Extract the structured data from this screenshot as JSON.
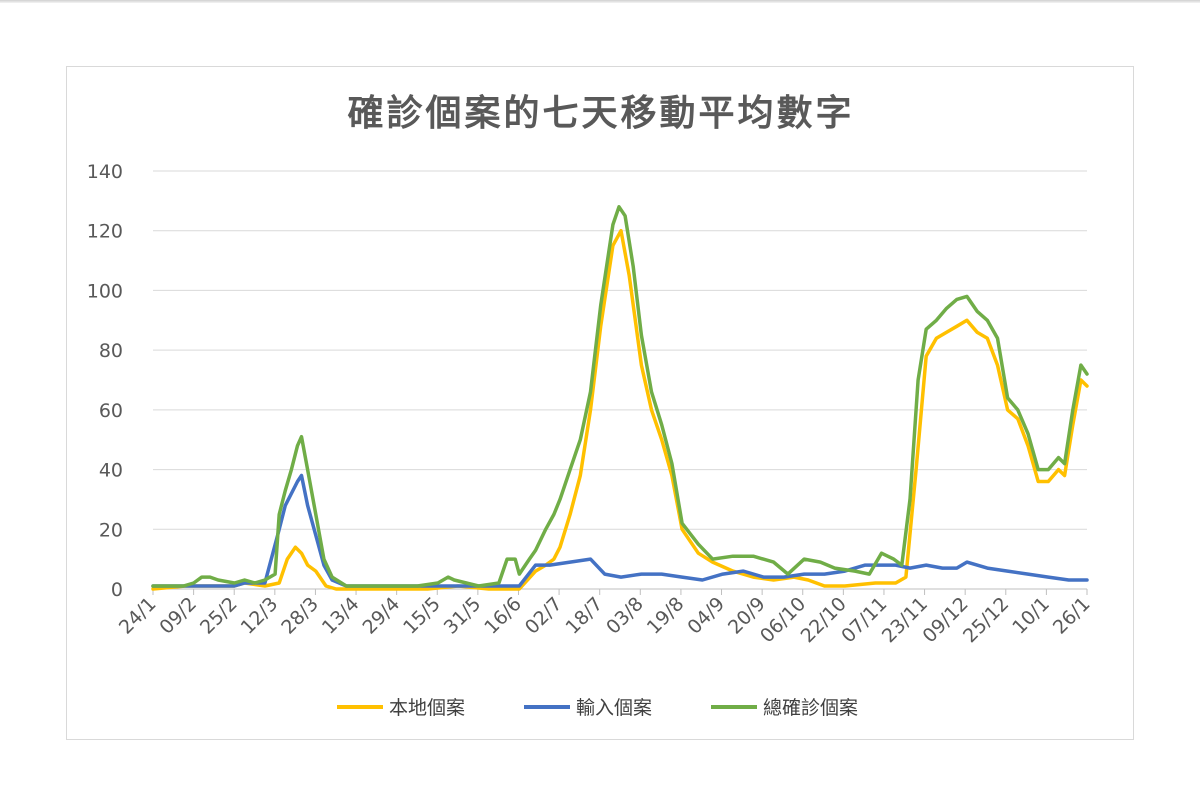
{
  "chart_data": {
    "type": "line",
    "title": "確診個案的七天移動平均數字",
    "xlabel": "",
    "ylabel": "",
    "ylim": [
      0,
      140
    ],
    "yticks": [
      0,
      20,
      40,
      60,
      80,
      100,
      120,
      140
    ],
    "grid": true,
    "legend_position": "bottom",
    "x_start_date": "24/1",
    "x_end_date": "26/1",
    "x_tick_labels": [
      "24/1",
      "09/2",
      "25/2",
      "12/3",
      "28/3",
      "13/4",
      "29/4",
      "15/5",
      "31/5",
      "16/6",
      "02/7",
      "18/7",
      "03/8",
      "19/8",
      "04/9",
      "20/9",
      "06/10",
      "22/10",
      "07/11",
      "23/11",
      "09/12",
      "25/12",
      "10/1",
      "26/1"
    ],
    "series": [
      {
        "name": "本地個案",
        "color": "#FFC000",
        "points": [
          [
            0,
            0
          ],
          [
            16,
            1
          ],
          [
            30,
            1
          ],
          [
            40,
            1
          ],
          [
            45,
            2
          ],
          [
            55,
            1
          ],
          [
            62,
            2
          ],
          [
            66,
            10
          ],
          [
            70,
            14
          ],
          [
            73,
            12
          ],
          [
            76,
            8
          ],
          [
            80,
            6
          ],
          [
            85,
            1
          ],
          [
            90,
            0
          ],
          [
            110,
            0
          ],
          [
            135,
            0
          ],
          [
            150,
            1
          ],
          [
            165,
            0
          ],
          [
            180,
            0
          ],
          [
            188,
            6
          ],
          [
            193,
            8
          ],
          [
            197,
            10
          ],
          [
            200,
            14
          ],
          [
            205,
            25
          ],
          [
            210,
            38
          ],
          [
            215,
            60
          ],
          [
            220,
            88
          ],
          [
            226,
            115
          ],
          [
            230,
            120
          ],
          [
            234,
            105
          ],
          [
            240,
            75
          ],
          [
            245,
            60
          ],
          [
            250,
            50
          ],
          [
            255,
            38
          ],
          [
            260,
            20
          ],
          [
            268,
            12
          ],
          [
            275,
            9
          ],
          [
            285,
            6
          ],
          [
            295,
            4
          ],
          [
            305,
            3
          ],
          [
            315,
            4
          ],
          [
            322,
            3
          ],
          [
            330,
            1
          ],
          [
            340,
            1
          ],
          [
            355,
            2
          ],
          [
            365,
            2
          ],
          [
            370,
            4
          ],
          [
            375,
            40
          ],
          [
            380,
            78
          ],
          [
            385,
            84
          ],
          [
            390,
            86
          ],
          [
            395,
            88
          ],
          [
            400,
            90
          ],
          [
            405,
            86
          ],
          [
            410,
            84
          ],
          [
            415,
            75
          ],
          [
            420,
            60
          ],
          [
            425,
            57
          ],
          [
            430,
            48
          ],
          [
            435,
            36
          ],
          [
            440,
            36
          ],
          [
            445,
            40
          ],
          [
            448,
            38
          ],
          [
            452,
            55
          ],
          [
            456,
            70
          ],
          [
            459,
            68
          ]
        ]
      },
      {
        "name": "輸入個案",
        "color": "#4472C4",
        "points": [
          [
            0,
            1
          ],
          [
            15,
            1
          ],
          [
            30,
            1
          ],
          [
            40,
            1
          ],
          [
            45,
            2
          ],
          [
            55,
            2
          ],
          [
            62,
            20
          ],
          [
            65,
            28
          ],
          [
            68,
            32
          ],
          [
            71,
            36
          ],
          [
            73,
            38
          ],
          [
            76,
            28
          ],
          [
            80,
            18
          ],
          [
            84,
            8
          ],
          [
            88,
            3
          ],
          [
            95,
            1
          ],
          [
            110,
            1
          ],
          [
            130,
            1
          ],
          [
            140,
            1
          ],
          [
            150,
            1
          ],
          [
            160,
            1
          ],
          [
            170,
            1
          ],
          [
            180,
            1
          ],
          [
            188,
            8
          ],
          [
            195,
            8
          ],
          [
            205,
            9
          ],
          [
            215,
            10
          ],
          [
            222,
            5
          ],
          [
            230,
            4
          ],
          [
            240,
            5
          ],
          [
            250,
            5
          ],
          [
            260,
            4
          ],
          [
            270,
            3
          ],
          [
            280,
            5
          ],
          [
            290,
            6
          ],
          [
            300,
            4
          ],
          [
            310,
            4
          ],
          [
            320,
            5
          ],
          [
            330,
            5
          ],
          [
            340,
            6
          ],
          [
            350,
            8
          ],
          [
            358,
            8
          ],
          [
            365,
            8
          ],
          [
            372,
            7
          ],
          [
            380,
            8
          ],
          [
            388,
            7
          ],
          [
            395,
            7
          ],
          [
            400,
            9
          ],
          [
            405,
            8
          ],
          [
            410,
            7
          ],
          [
            420,
            6
          ],
          [
            430,
            5
          ],
          [
            440,
            4
          ],
          [
            450,
            3
          ],
          [
            459,
            3
          ]
        ]
      },
      {
        "name": "總確診個案",
        "color": "#70AD47",
        "points": [
          [
            0,
            1
          ],
          [
            15,
            1
          ],
          [
            20,
            2
          ],
          [
            24,
            4
          ],
          [
            28,
            4
          ],
          [
            32,
            3
          ],
          [
            40,
            2
          ],
          [
            45,
            3
          ],
          [
            50,
            2
          ],
          [
            55,
            3
          ],
          [
            60,
            5
          ],
          [
            62,
            25
          ],
          [
            65,
            33
          ],
          [
            68,
            40
          ],
          [
            71,
            48
          ],
          [
            73,
            51
          ],
          [
            76,
            40
          ],
          [
            80,
            25
          ],
          [
            84,
            10
          ],
          [
            88,
            4
          ],
          [
            95,
            1
          ],
          [
            110,
            1
          ],
          [
            130,
            1
          ],
          [
            140,
            2
          ],
          [
            145,
            4
          ],
          [
            148,
            3
          ],
          [
            160,
            1
          ],
          [
            170,
            2
          ],
          [
            174,
            10
          ],
          [
            178,
            10
          ],
          [
            180,
            5
          ],
          [
            185,
            10
          ],
          [
            188,
            13
          ],
          [
            193,
            20
          ],
          [
            197,
            25
          ],
          [
            200,
            30
          ],
          [
            205,
            40
          ],
          [
            210,
            50
          ],
          [
            215,
            66
          ],
          [
            220,
            95
          ],
          [
            226,
            122
          ],
          [
            229,
            128
          ],
          [
            232,
            125
          ],
          [
            236,
            108
          ],
          [
            240,
            85
          ],
          [
            245,
            66
          ],
          [
            250,
            55
          ],
          [
            255,
            42
          ],
          [
            260,
            22
          ],
          [
            268,
            15
          ],
          [
            275,
            10
          ],
          [
            285,
            11
          ],
          [
            295,
            11
          ],
          [
            305,
            9
          ],
          [
            312,
            5
          ],
          [
            320,
            10
          ],
          [
            328,
            9
          ],
          [
            335,
            7
          ],
          [
            345,
            6
          ],
          [
            352,
            5
          ],
          [
            358,
            12
          ],
          [
            364,
            10
          ],
          [
            368,
            8
          ],
          [
            372,
            30
          ],
          [
            376,
            70
          ],
          [
            380,
            87
          ],
          [
            385,
            90
          ],
          [
            390,
            94
          ],
          [
            395,
            97
          ],
          [
            400,
            98
          ],
          [
            405,
            93
          ],
          [
            410,
            90
          ],
          [
            415,
            84
          ],
          [
            420,
            64
          ],
          [
            425,
            60
          ],
          [
            430,
            52
          ],
          [
            435,
            40
          ],
          [
            440,
            40
          ],
          [
            445,
            44
          ],
          [
            448,
            42
          ],
          [
            452,
            60
          ],
          [
            456,
            75
          ],
          [
            459,
            72
          ]
        ]
      }
    ]
  }
}
